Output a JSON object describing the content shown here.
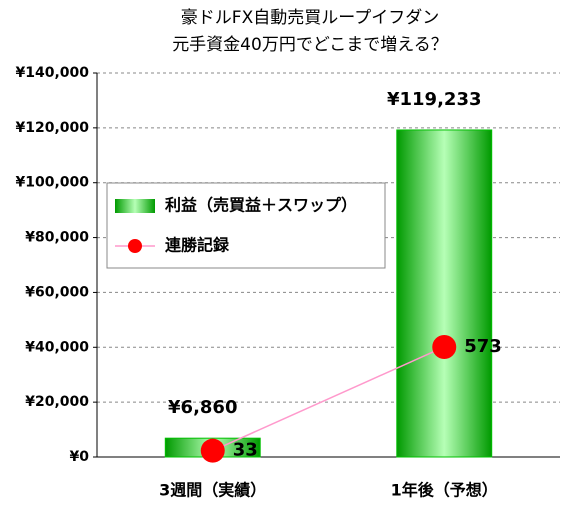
{
  "chart_data": {
    "type": "bar-line",
    "title": [
      "豪ドルFX自動売買ループイフダン",
      "元手資金40万円でどこまで増える？"
    ],
    "categories": [
      "3週間（実績）",
      "1年後（予想）"
    ],
    "series": [
      {
        "name": "利益（売買益＋スワップ）",
        "type": "bar",
        "color": "#00c000",
        "values": [
          6860,
          119233
        ],
        "value_labels": [
          "¥6,860",
          "¥119,233"
        ]
      },
      {
        "name": "連勝記録",
        "type": "line",
        "axis": "y2",
        "color": "#ff99cc",
        "marker_color": "#ff0000",
        "values": [
          33,
          573
        ]
      }
    ],
    "ylim": [
      0,
      140000
    ],
    "yticks": [
      {
        "value": 0,
        "label": "¥0"
      },
      {
        "value": 20000,
        "label": "¥20,000"
      },
      {
        "value": 40000,
        "label": "¥40,000"
      },
      {
        "value": 60000,
        "label": "¥60,000"
      },
      {
        "value": 80000,
        "label": "¥80,000"
      },
      {
        "value": 100000,
        "label": "¥100,000"
      },
      {
        "value": 120000,
        "label": "¥120,000"
      },
      {
        "value": 140000,
        "label": "¥140,000"
      }
    ],
    "y2lim": [
      0,
      2000
    ],
    "grid": true,
    "legend": "upper left"
  }
}
